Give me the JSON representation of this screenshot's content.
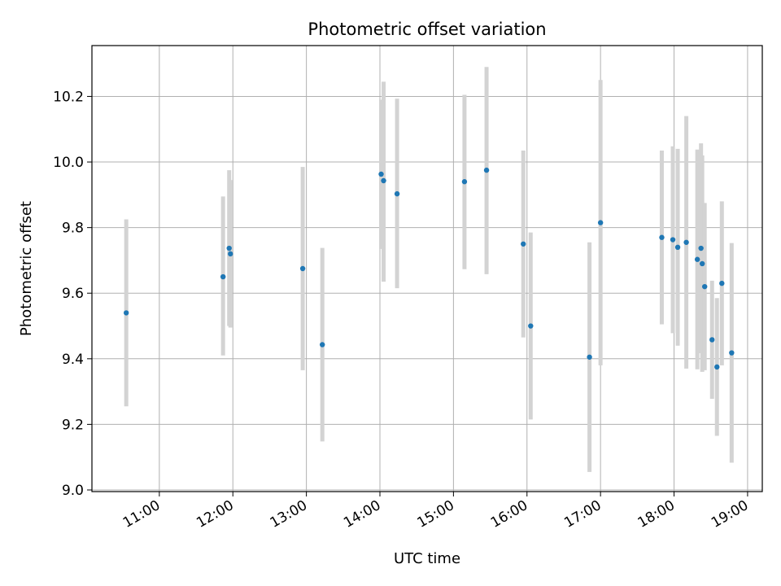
{
  "chart_data": {
    "type": "scatter",
    "title": "Photometric offset variation",
    "xlabel": "UTC time",
    "ylabel": "Photometric offset",
    "xlim": [
      "10:05",
      "19:12"
    ],
    "ylim": [
      8.995,
      10.355
    ],
    "xticks": [
      "11:00",
      "12:00",
      "13:00",
      "14:00",
      "15:00",
      "16:00",
      "17:00",
      "18:00",
      "19:00"
    ],
    "yticks": [
      "9.0",
      "9.2",
      "9.4",
      "9.6",
      "9.8",
      "10.0",
      "10.2"
    ],
    "grid": true,
    "marker_color": "#1f77b4",
    "errorbar_color": "#d3d3d3",
    "points": [
      {
        "x": "10:33",
        "y": 9.54,
        "ylo": 9.255,
        "yhi": 9.825
      },
      {
        "x": "11:52",
        "y": 9.65,
        "ylo": 9.41,
        "yhi": 9.895
      },
      {
        "x": "11:57",
        "y": 9.737,
        "ylo": 9.5,
        "yhi": 9.975
      },
      {
        "x": "11:58",
        "y": 9.72,
        "ylo": 9.495,
        "yhi": 9.945
      },
      {
        "x": "12:57",
        "y": 9.675,
        "ylo": 9.365,
        "yhi": 9.985
      },
      {
        "x": "13:13",
        "y": 9.443,
        "ylo": 9.148,
        "yhi": 9.738
      },
      {
        "x": "14:01",
        "y": 9.963,
        "ylo": 9.735,
        "yhi": 10.19
      },
      {
        "x": "14:03",
        "y": 9.943,
        "ylo": 9.635,
        "yhi": 10.245
      },
      {
        "x": "14:14",
        "y": 9.903,
        "ylo": 9.615,
        "yhi": 10.193
      },
      {
        "x": "15:09",
        "y": 9.94,
        "ylo": 9.673,
        "yhi": 10.205
      },
      {
        "x": "15:27",
        "y": 9.975,
        "ylo": 9.658,
        "yhi": 10.29
      },
      {
        "x": "15:57",
        "y": 9.75,
        "ylo": 9.465,
        "yhi": 10.035
      },
      {
        "x": "16:03",
        "y": 9.5,
        "ylo": 9.215,
        "yhi": 9.785
      },
      {
        "x": "16:51",
        "y": 9.405,
        "ylo": 9.055,
        "yhi": 9.755
      },
      {
        "x": "17:00",
        "y": 9.815,
        "ylo": 9.38,
        "yhi": 10.25
      },
      {
        "x": "17:50",
        "y": 9.77,
        "ylo": 9.505,
        "yhi": 10.035
      },
      {
        "x": "17:59",
        "y": 9.763,
        "ylo": 9.478,
        "yhi": 10.048
      },
      {
        "x": "18:03",
        "y": 9.74,
        "ylo": 9.44,
        "yhi": 10.04
      },
      {
        "x": "18:10",
        "y": 9.755,
        "ylo": 9.37,
        "yhi": 10.14
      },
      {
        "x": "18:19",
        "y": 9.703,
        "ylo": 9.368,
        "yhi": 10.038
      },
      {
        "x": "18:22",
        "y": 9.737,
        "ylo": 9.417,
        "yhi": 10.057
      },
      {
        "x": "18:23",
        "y": 9.69,
        "ylo": 9.36,
        "yhi": 10.02
      },
      {
        "x": "18:25",
        "y": 9.62,
        "ylo": 9.365,
        "yhi": 9.875
      },
      {
        "x": "18:31",
        "y": 9.458,
        "ylo": 9.278,
        "yhi": 9.638
      },
      {
        "x": "18:35",
        "y": 9.375,
        "ylo": 9.165,
        "yhi": 9.585
      },
      {
        "x": "18:39",
        "y": 9.63,
        "ylo": 9.38,
        "yhi": 9.88
      },
      {
        "x": "18:47",
        "y": 9.418,
        "ylo": 9.083,
        "yhi": 9.753
      }
    ]
  }
}
